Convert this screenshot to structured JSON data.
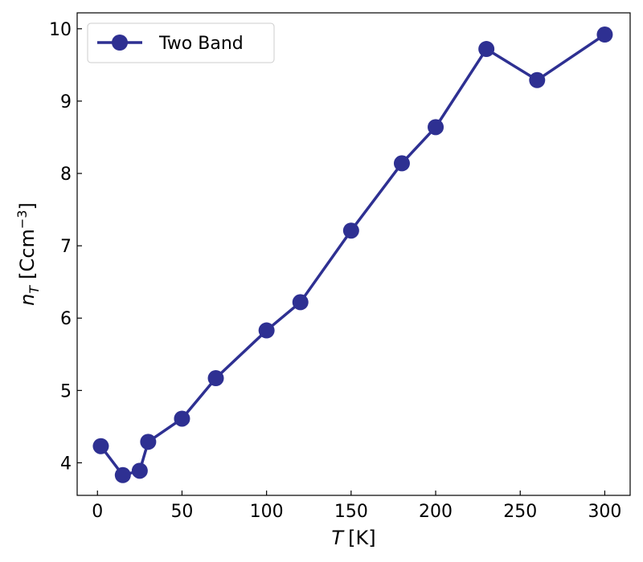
{
  "chart_data": {
    "type": "line",
    "xlabel": {
      "symbol": "T",
      "unit": "[K]"
    },
    "ylabel": {
      "symbol": "n",
      "subscript": "T",
      "unit_prefix": "[Ccm",
      "unit_exponent": "−3",
      "unit_suffix": "]"
    },
    "xlim": [
      -12,
      315
    ],
    "ylim": [
      3.55,
      10.22
    ],
    "xticks": [
      0,
      50,
      100,
      150,
      200,
      250,
      300
    ],
    "xtick_labels": [
      "0",
      "50",
      "100",
      "150",
      "200",
      "250",
      "300"
    ],
    "yticks": [
      4,
      5,
      6,
      7,
      8,
      9,
      10
    ],
    "ytick_labels": [
      "4",
      "5",
      "6",
      "7",
      "8",
      "9",
      "10"
    ],
    "grid": false,
    "legend": {
      "position": "top-left",
      "entries": [
        "Two Band"
      ]
    },
    "series": [
      {
        "name": "Two Band",
        "color": "#2E3092",
        "marker": "circle",
        "x": [
          2,
          15,
          25,
          30,
          50,
          70,
          100,
          120,
          150,
          180,
          200,
          230,
          260,
          300
        ],
        "y": [
          4.23,
          3.83,
          3.89,
          4.29,
          4.61,
          5.17,
          5.83,
          6.22,
          7.21,
          8.14,
          8.64,
          9.72,
          9.29,
          9.92
        ]
      }
    ]
  }
}
